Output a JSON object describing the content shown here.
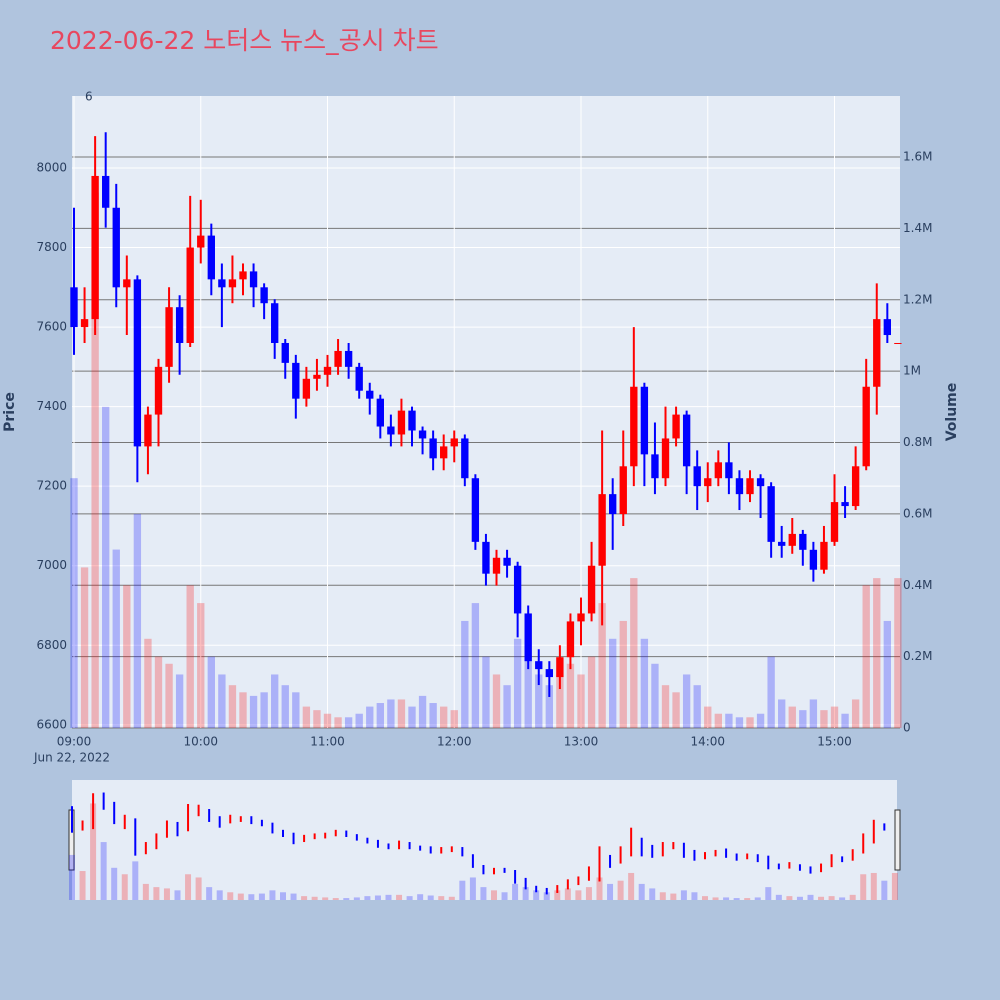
{
  "chart_data": {
    "type": "candlestick",
    "title": "2022-06-22 노터스 뉴스_공시 차트",
    "y_title": "Price",
    "y2_title": "Volume",
    "x_date_label": "Jun 22, 2022",
    "annotation": {
      "x": "09:07",
      "text": "6"
    },
    "increasing_color": "#ff0000",
    "decreasing_color": "#0000ff",
    "xlim": [
      "09:00",
      "15:31"
    ],
    "xticks": [
      "09:00",
      "10:00",
      "11:00",
      "12:00",
      "13:00",
      "14:00",
      "15:00"
    ],
    "ylim": [
      6592,
      8181
    ],
    "yticks": [
      6600,
      6800,
      7000,
      7200,
      7400,
      7600,
      7800,
      8000
    ],
    "y2lim": [
      0,
      1771000
    ],
    "y2ticks": [
      0,
      {
        "value": 200000,
        "label": "0.2M"
      },
      {
        "value": 400000,
        "label": "0.4M"
      },
      {
        "value": 600000,
        "label": "0.6M"
      },
      {
        "value": 800000,
        "label": "0.8M"
      },
      {
        "value": 1000000,
        "label": "1M"
      },
      {
        "value": 1200000,
        "label": "1.2M"
      },
      {
        "value": 1400000,
        "label": "1.4M"
      },
      {
        "value": 1600000,
        "label": "1.6M"
      }
    ],
    "x": [
      "09:00",
      "09:05",
      "09:10",
      "09:15",
      "09:20",
      "09:25",
      "09:30",
      "09:35",
      "09:40",
      "09:45",
      "09:50",
      "09:55",
      "10:00",
      "10:05",
      "10:10",
      "10:15",
      "10:20",
      "10:25",
      "10:30",
      "10:35",
      "10:40",
      "10:45",
      "10:50",
      "10:55",
      "11:00",
      "11:05",
      "11:10",
      "11:15",
      "11:20",
      "11:25",
      "11:30",
      "11:35",
      "11:40",
      "11:45",
      "11:50",
      "11:55",
      "12:00",
      "12:05",
      "12:10",
      "12:15",
      "12:20",
      "12:25",
      "12:30",
      "12:35",
      "12:40",
      "12:45",
      "12:50",
      "12:55",
      "13:00",
      "13:05",
      "13:10",
      "13:15",
      "13:20",
      "13:25",
      "13:30",
      "13:35",
      "13:40",
      "13:45",
      "13:50",
      "13:55",
      "14:00",
      "14:05",
      "14:10",
      "14:15",
      "14:20",
      "14:25",
      "14:30",
      "14:35",
      "14:40",
      "14:45",
      "14:50",
      "14:55",
      "15:00",
      "15:05",
      "15:10",
      "15:15",
      "15:20",
      "15:25",
      "15:30"
    ],
    "open": [
      7700,
      7600,
      7620,
      7980,
      7900,
      7700,
      7720,
      7300,
      7380,
      7500,
      7650,
      7560,
      7800,
      7830,
      7720,
      7700,
      7720,
      7740,
      7700,
      7660,
      7560,
      7510,
      7420,
      7470,
      7480,
      7500,
      7540,
      7500,
      7440,
      7420,
      7350,
      7330,
      7390,
      7340,
      7320,
      7270,
      7300,
      7320,
      7220,
      7060,
      6980,
      7020,
      7000,
      6880,
      6760,
      6740,
      6720,
      6770,
      6860,
      6880,
      7000,
      7180,
      7130,
      7250,
      7450,
      7280,
      7220,
      7320,
      7380,
      7250,
      7200,
      7220,
      7260,
      7220,
      7180,
      7220,
      7200,
      7060,
      7050,
      7080,
      7040,
      6990,
      7060,
      7160,
      7150,
      7250,
      7450,
      7620,
      7560
    ],
    "high": [
      7900,
      7700,
      8080,
      8090,
      7960,
      7780,
      7730,
      7400,
      7520,
      7700,
      7680,
      7930,
      7920,
      7860,
      7760,
      7780,
      7760,
      7760,
      7710,
      7670,
      7570,
      7530,
      7500,
      7520,
      7530,
      7570,
      7560,
      7510,
      7460,
      7430,
      7380,
      7420,
      7400,
      7350,
      7340,
      7330,
      7340,
      7330,
      7230,
      7080,
      7040,
      7040,
      7010,
      6900,
      6790,
      6760,
      6800,
      6880,
      6920,
      7060,
      7340,
      7220,
      7340,
      7600,
      7460,
      7360,
      7400,
      7400,
      7390,
      7290,
      7260,
      7290,
      7310,
      7240,
      7240,
      7230,
      7210,
      7100,
      7120,
      7090,
      7060,
      7100,
      7230,
      7200,
      7300,
      7520,
      7710,
      7660,
      7560
    ],
    "low": [
      7530,
      7560,
      7580,
      7850,
      7650,
      7580,
      7210,
      7230,
      7300,
      7460,
      7480,
      7550,
      7760,
      7680,
      7600,
      7660,
      7680,
      7650,
      7620,
      7520,
      7470,
      7370,
      7400,
      7440,
      7450,
      7480,
      7470,
      7420,
      7380,
      7320,
      7300,
      7300,
      7300,
      7280,
      7240,
      7240,
      7260,
      7200,
      7040,
      6950,
      6950,
      6970,
      6820,
      6740,
      6700,
      6670,
      6690,
      6740,
      6800,
      6860,
      6850,
      7040,
      7100,
      7200,
      7200,
      7180,
      7200,
      7300,
      7180,
      7140,
      7160,
      7200,
      7180,
      7140,
      7160,
      7120,
      7020,
      7020,
      7030,
      7000,
      6960,
      6980,
      7050,
      7120,
      7140,
      7240,
      7380,
      7560,
      7560
    ],
    "close": [
      7600,
      7620,
      7980,
      7900,
      7700,
      7720,
      7300,
      7380,
      7500,
      7650,
      7560,
      7800,
      7830,
      7720,
      7700,
      7720,
      7740,
      7700,
      7660,
      7560,
      7510,
      7420,
      7470,
      7480,
      7500,
      7540,
      7500,
      7440,
      7420,
      7350,
      7330,
      7390,
      7340,
      7320,
      7270,
      7300,
      7320,
      7220,
      7060,
      6980,
      7020,
      7000,
      6880,
      6760,
      6740,
      6720,
      6770,
      6860,
      6880,
      7000,
      7180,
      7130,
      7250,
      7450,
      7280,
      7220,
      7320,
      7380,
      7250,
      7200,
      7220,
      7260,
      7220,
      7180,
      7220,
      7200,
      7060,
      7050,
      7080,
      7040,
      6990,
      7060,
      7160,
      7150,
      7250,
      7450,
      7620,
      7580,
      7560
    ],
    "volume": [
      700000,
      450000,
      1500000,
      900000,
      500000,
      400000,
      600000,
      250000,
      200000,
      180000,
      150000,
      400000,
      350000,
      200000,
      150000,
      120000,
      100000,
      90000,
      100000,
      150000,
      120000,
      100000,
      60000,
      50000,
      40000,
      30000,
      30000,
      40000,
      60000,
      70000,
      80000,
      80000,
      60000,
      90000,
      70000,
      60000,
      50000,
      300000,
      350000,
      200000,
      150000,
      120000,
      250000,
      200000,
      150000,
      120000,
      150000,
      180000,
      150000,
      200000,
      350000,
      250000,
      300000,
      420000,
      250000,
      180000,
      120000,
      100000,
      150000,
      120000,
      60000,
      40000,
      40000,
      30000,
      30000,
      40000,
      200000,
      80000,
      60000,
      50000,
      80000,
      50000,
      60000,
      40000,
      80000,
      400000,
      420000,
      300000,
      420000
    ]
  }
}
